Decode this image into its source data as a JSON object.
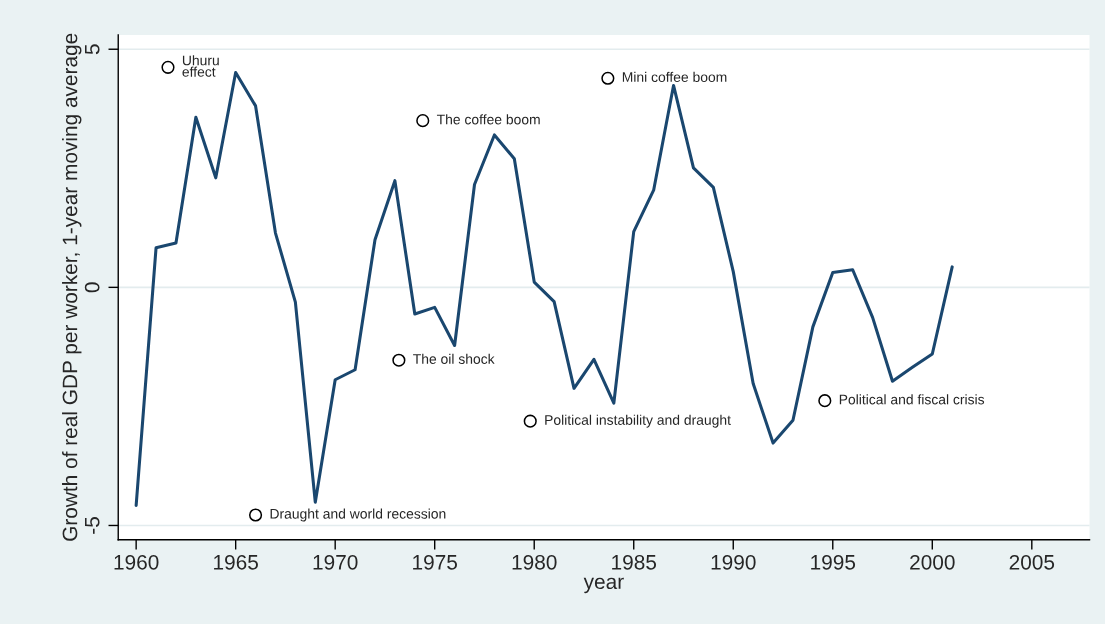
{
  "chart_data": {
    "type": "line",
    "xlabel": "year",
    "ylabel": "Growth of real GDP per worker, 1-year moving average",
    "xlim": [
      1959.1,
      2007.9
    ],
    "xticks": [
      1960,
      1965,
      1970,
      1975,
      1980,
      1985,
      1990,
      1995,
      2000,
      2005
    ],
    "ylim": [
      -5.3,
      5.3
    ],
    "yticks": [
      -5,
      0,
      5
    ],
    "grid": "y",
    "series": [
      {
        "color": "#1a476f",
        "marker": "none",
        "line_style": "solid",
        "x": [
          1960,
          1961,
          1962,
          1963,
          1964,
          1965,
          1966,
          1967,
          1968,
          1969,
          1970,
          1971,
          1972,
          1973,
          1974,
          1975,
          1976,
          1977,
          1978,
          1979,
          1980,
          1981,
          1982,
          1983,
          1984,
          1985,
          1986,
          1987,
          1988,
          1989,
          1990,
          1991,
          1992,
          1993,
          1994,
          1995,
          1996,
          1997,
          1998,
          1999,
          2000,
          2001
        ],
        "values": [
          -4.58,
          0.83,
          0.93,
          3.57,
          2.3,
          4.51,
          3.81,
          1.14,
          -0.31,
          -4.51,
          -1.94,
          -1.73,
          1.0,
          2.24,
          -0.56,
          -0.42,
          -1.22,
          2.16,
          3.2,
          2.7,
          0.11,
          -0.3,
          -2.12,
          -1.51,
          -2.43,
          1.17,
          2.04,
          4.24,
          2.51,
          2.1,
          0.33,
          -2.02,
          -3.27,
          -2.79,
          -0.83,
          0.31,
          0.37,
          -0.63,
          -1.97,
          -1.68,
          -1.4,
          0.43
        ]
      },
      {
        "type": "scatter",
        "color": "#000000",
        "marker": "circle",
        "x": [
          1961.6,
          1966.0,
          1973.2,
          1974.4,
          1979.8,
          1983.7,
          1994.6
        ],
        "values": [
          4.62,
          -4.78,
          -1.53,
          3.5,
          -2.81,
          4.39,
          -2.38
        ]
      }
    ],
    "annotations": [
      {
        "text": "Uhuru\neffect",
        "x": 1961.6,
        "y": 4.62
      },
      {
        "text": "Draught and world recession",
        "x": 1966.0,
        "y": -4.78
      },
      {
        "text": "The oil shock",
        "x": 1973.2,
        "y": -1.53
      },
      {
        "text": "The coffee boom",
        "x": 1974.4,
        "y": 3.5
      },
      {
        "text": "Political instability and draught",
        "x": 1979.8,
        "y": -2.81
      },
      {
        "text": "Mini coffee boom",
        "x": 1983.7,
        "y": 4.39
      },
      {
        "text": "Political and fiscal crisis",
        "x": 1994.6,
        "y": -2.38
      }
    ]
  }
}
